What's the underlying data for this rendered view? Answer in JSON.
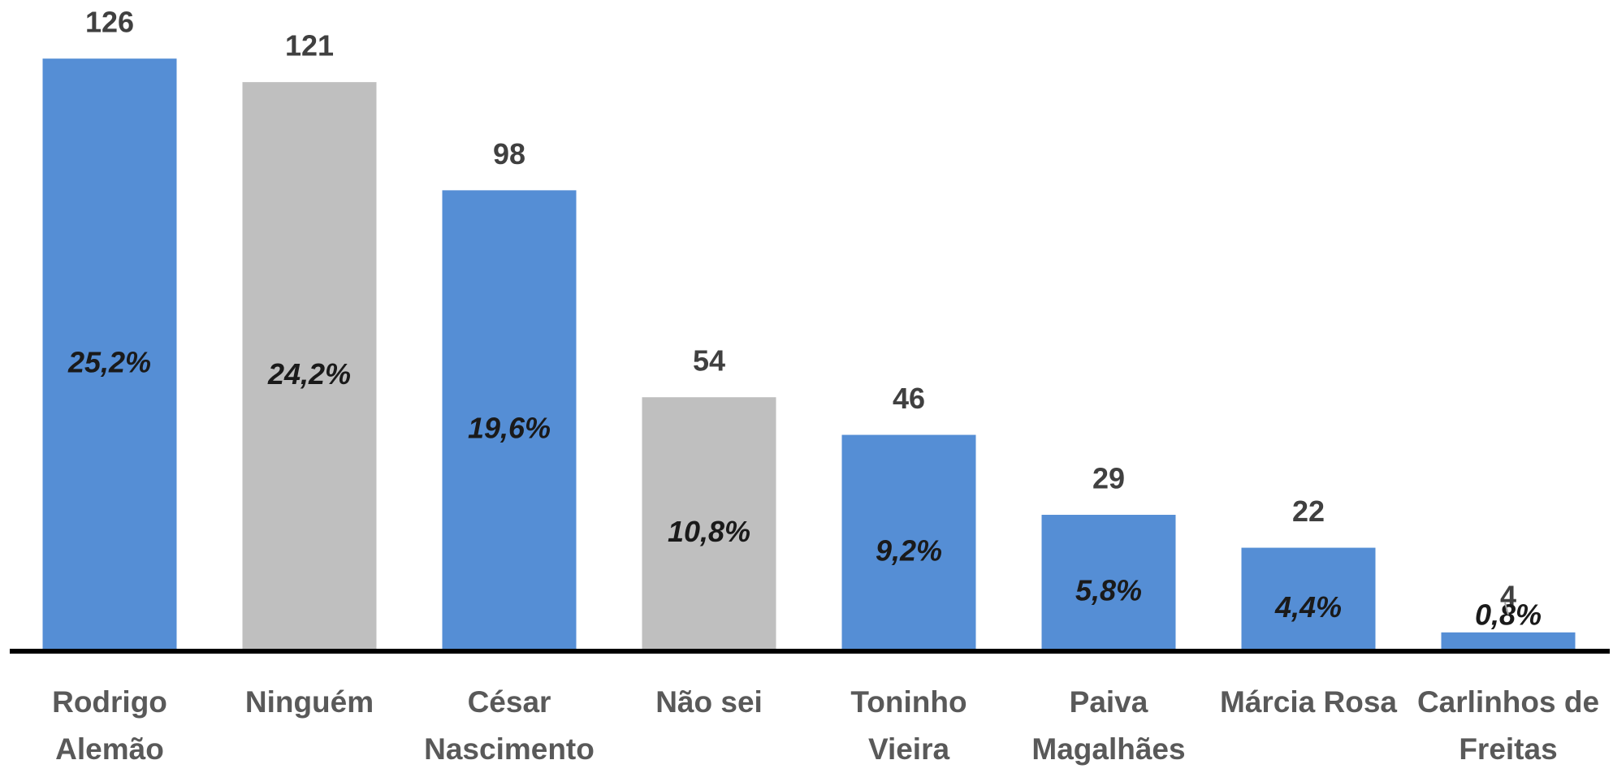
{
  "chart_data": {
    "type": "bar",
    "categories": [
      "Rodrigo Alemão",
      "Ninguém",
      "César Nascimento",
      "Não sei",
      "Toninho Vieira",
      "Paiva Magalhães",
      "Márcia Rosa",
      "Carlinhos de Freitas"
    ],
    "values": [
      126,
      121,
      98,
      54,
      46,
      29,
      22,
      4
    ],
    "colors": [
      "#558ed5",
      "#bfbfbf",
      "#558ed5",
      "#bfbfbf",
      "#558ed5",
      "#558ed5",
      "#558ed5",
      "#558ed5"
    ],
    "shares": [
      25.2,
      24.2,
      19.6,
      10.8,
      9.2,
      5.8,
      4.4,
      0.8
    ],
    "share_labels": [
      "25,2%",
      "24,2%",
      "19,6%",
      "10,8%",
      "9,2%",
      "5,8%",
      "4,4%",
      "0,8%"
    ],
    "ylim": [
      0,
      130
    ]
  }
}
